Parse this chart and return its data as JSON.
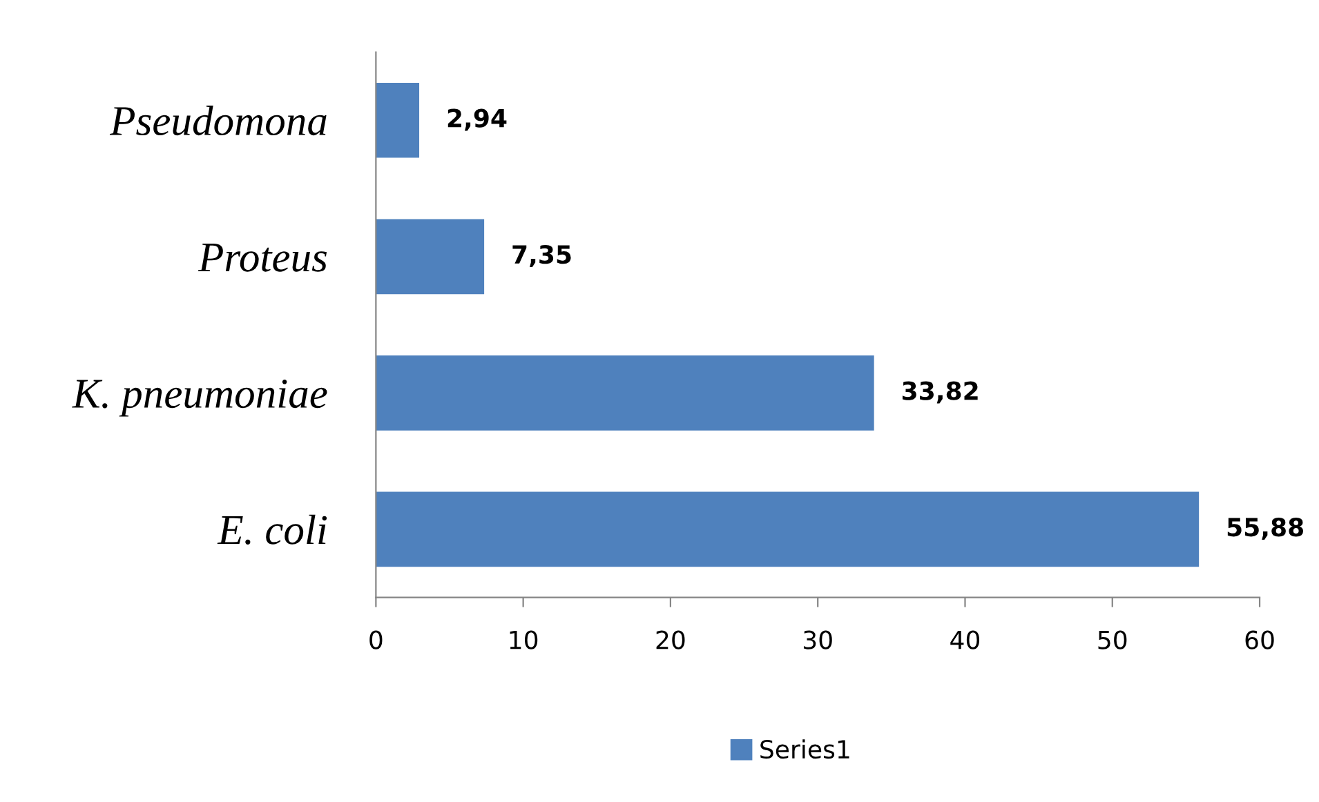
{
  "chart_data": {
    "type": "bar",
    "orientation": "horizontal",
    "categories": [
      "Pseudomona",
      "Proteus",
      "K. pneumoniae",
      "E. coli"
    ],
    "series": [
      {
        "name": "Series1",
        "color": "#4f81bd",
        "values": [
          2.94,
          7.35,
          33.82,
          55.88
        ],
        "value_labels": [
          "2,94",
          "7,35",
          "33,82",
          "55,88"
        ]
      }
    ],
    "xlim": [
      0,
      60
    ],
    "xticks": [
      0,
      10,
      20,
      30,
      40,
      50,
      60
    ],
    "grid": false,
    "legend": "bottom"
  }
}
